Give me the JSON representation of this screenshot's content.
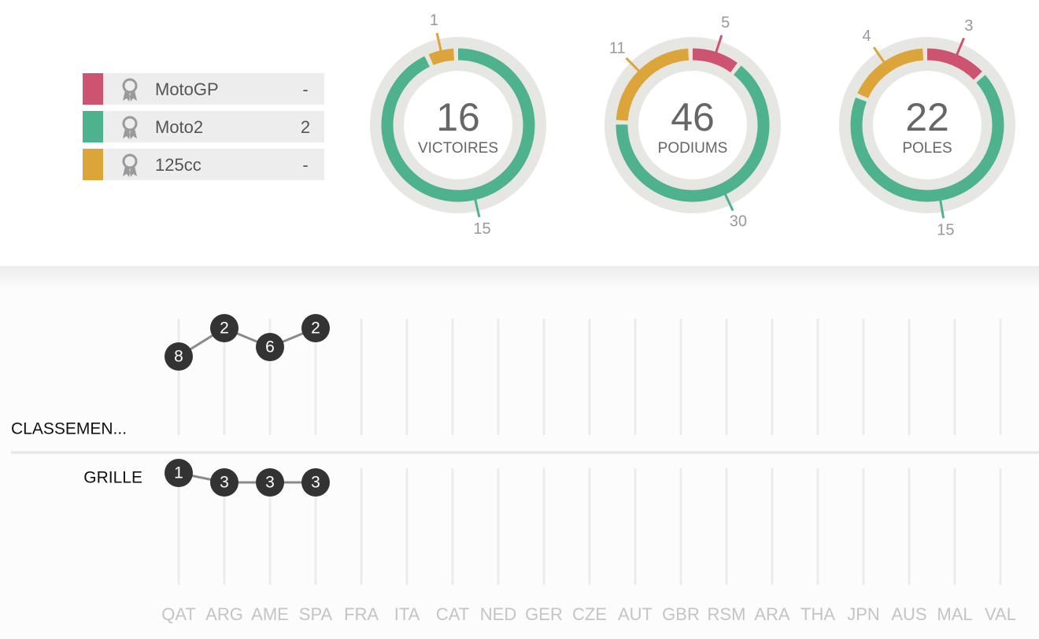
{
  "legend": [
    {
      "label": "MotoGP",
      "value": "-",
      "color": "#cc5470"
    },
    {
      "label": "Moto2",
      "value": 2,
      "color": "#4fb28f"
    },
    {
      "label": "125cc",
      "value": "-",
      "color": "#dba53a"
    }
  ],
  "donuts": [
    {
      "total": 16,
      "label": "VICTOIRES",
      "segments": [
        {
          "value": 15,
          "color": "#4fb28f"
        },
        {
          "value": 1,
          "color": "#dba53a"
        }
      ]
    },
    {
      "total": 46,
      "label": "PODIUMS",
      "segments": [
        {
          "value": 5,
          "color": "#cc5470"
        },
        {
          "value": 30,
          "color": "#4fb28f"
        },
        {
          "value": 11,
          "color": "#dba53a"
        }
      ]
    },
    {
      "total": 22,
      "label": "POLES",
      "segments": [
        {
          "value": 3,
          "color": "#cc5470"
        },
        {
          "value": 15,
          "color": "#4fb28f"
        },
        {
          "value": 4,
          "color": "#dba53a"
        }
      ]
    }
  ],
  "chart_data": {
    "type": "line",
    "categories": [
      "QAT",
      "ARG",
      "AME",
      "SPA",
      "FRA",
      "ITA",
      "CAT",
      "NED",
      "GER",
      "CZE",
      "AUT",
      "GBR",
      "RSM",
      "ARA",
      "THA",
      "JPN",
      "AUS",
      "MAL",
      "VAL"
    ],
    "series": [
      {
        "name": "CLASSEMEN...",
        "values": [
          8,
          2,
          6,
          2,
          null,
          null,
          null,
          null,
          null,
          null,
          null,
          null,
          null,
          null,
          null,
          null,
          null,
          null,
          null
        ]
      },
      {
        "name": "GRILLE",
        "values": [
          1,
          3,
          3,
          3,
          null,
          null,
          null,
          null,
          null,
          null,
          null,
          null,
          null,
          null,
          null,
          null,
          null,
          null,
          null
        ]
      }
    ],
    "color": "#333333",
    "line_color": "#8a8a8a"
  }
}
